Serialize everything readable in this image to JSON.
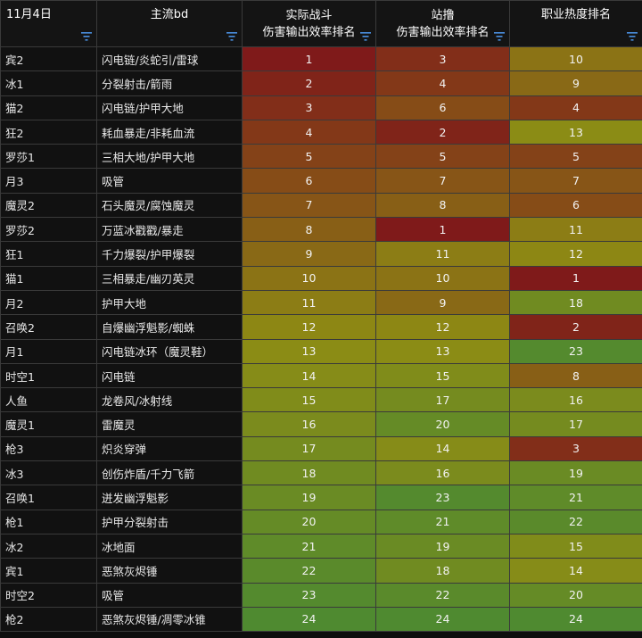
{
  "headers": {
    "col0": "11月4日",
    "col1": "主流bd",
    "col2": [
      "实际战斗",
      "伤害输出效率排名"
    ],
    "col3": [
      "站撸",
      "伤害输出效率排名"
    ],
    "col4": "职业热度排名"
  },
  "icons": {
    "filter": "filter-icon"
  },
  "scale": {
    "low": "#7f1a1a",
    "mid": "#8e8c14",
    "high": "#4f8a30"
  },
  "rows": [
    {
      "cls": "宾2",
      "bd": "闪电链/炎蛇引/雷球",
      "actual": "1",
      "stand": "3",
      "heat": "10"
    },
    {
      "cls": "冰1",
      "bd": "分裂射击/箭雨",
      "actual": "2",
      "stand": "4",
      "heat": "9"
    },
    {
      "cls": "猫2",
      "bd": "闪电链/护甲大地",
      "actual": "3",
      "stand": "6",
      "heat": "4"
    },
    {
      "cls": "狂2",
      "bd": "耗血暴走/非耗血流",
      "actual": "4",
      "stand": "2",
      "heat": "13"
    },
    {
      "cls": "罗莎1",
      "bd": "三相大地/护甲大地",
      "actual": "5",
      "stand": "5",
      "heat": "5"
    },
    {
      "cls": "月3",
      "bd": "吸管",
      "actual": "6",
      "stand": "7",
      "heat": "7"
    },
    {
      "cls": "魔灵2",
      "bd": "石头魔灵/腐蚀魔灵",
      "actual": "7",
      "stand": "8",
      "heat": "6"
    },
    {
      "cls": "罗莎2",
      "bd": "万蓝冰戳戳/暴走",
      "actual": "8",
      "stand": "1",
      "heat": "11"
    },
    {
      "cls": "狂1",
      "bd": "千力爆裂/护甲爆裂",
      "actual": "9",
      "stand": "11",
      "heat": "12"
    },
    {
      "cls": "猫1",
      "bd": "三相暴走/幽刃英灵",
      "actual": "10",
      "stand": "10",
      "heat": "1"
    },
    {
      "cls": "月2",
      "bd": "护甲大地",
      "actual": "11",
      "stand": "9",
      "heat": "18"
    },
    {
      "cls": "召唤2",
      "bd": "自爆幽浮魁影/蜘蛛",
      "actual": "12",
      "stand": "12",
      "heat": "2"
    },
    {
      "cls": "月1",
      "bd": "闪电链冰环（魔灵鞋）",
      "actual": "13",
      "stand": "13",
      "heat": "23"
    },
    {
      "cls": "时空1",
      "bd": "闪电链",
      "actual": "14",
      "stand": "15",
      "heat": "8"
    },
    {
      "cls": "人鱼",
      "bd": "龙卷风/冰射线",
      "actual": "15",
      "stand": "17",
      "heat": "16"
    },
    {
      "cls": "魔灵1",
      "bd": "雷魔灵",
      "actual": "16",
      "stand": "20",
      "heat": "17"
    },
    {
      "cls": "枪3",
      "bd": "炽炎穿弹",
      "actual": "17",
      "stand": "14",
      "heat": "3"
    },
    {
      "cls": "冰3",
      "bd": "创伤炸盾/千力飞箭",
      "actual": "18",
      "stand": "16",
      "heat": "19"
    },
    {
      "cls": "召唤1",
      "bd": "迸发幽浮魁影",
      "actual": "19",
      "stand": "23",
      "heat": "21"
    },
    {
      "cls": "枪1",
      "bd": "护甲分裂射击",
      "actual": "20",
      "stand": "21",
      "heat": "22"
    },
    {
      "cls": "冰2",
      "bd": "冰地面",
      "actual": "21",
      "stand": "19",
      "heat": "15"
    },
    {
      "cls": "宾1",
      "bd": "恶煞灰烬锤",
      "actual": "22",
      "stand": "18",
      "heat": "14"
    },
    {
      "cls": "时空2",
      "bd": "吸管",
      "actual": "23",
      "stand": "22",
      "heat": "20"
    },
    {
      "cls": "枪2",
      "bd": "恶煞灰烬锤/凋零冰锥",
      "actual": "24",
      "stand": "24",
      "heat": "24"
    }
  ]
}
